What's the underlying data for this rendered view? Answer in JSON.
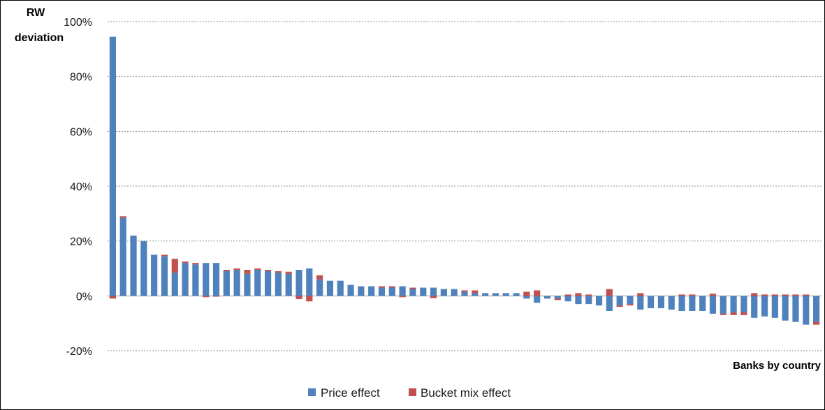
{
  "chart_data": {
    "type": "bar",
    "stacked": true,
    "ylabel_line1": "RW",
    "ylabel_line2": "deviation",
    "xlabel": "Banks by country",
    "ylim": [
      -20,
      100
    ],
    "yticks": [
      -20,
      0,
      20,
      40,
      60,
      80,
      100
    ],
    "ytick_labels": [
      "-20%",
      "0%",
      "20%",
      "40%",
      "60%",
      "80%",
      "100%"
    ],
    "grid": true,
    "legend_position": "bottom",
    "colors": {
      "price": "#4F81BD",
      "bucket": "#C0504D"
    },
    "series": [
      {
        "name": "Price effect",
        "values": [
          94.5,
          28.5,
          22,
          20,
          15,
          14.5,
          8.5,
          12,
          11.5,
          12,
          12,
          9,
          9.5,
          8,
          9.5,
          9,
          8.5,
          8,
          9.5,
          10,
          6,
          5.5,
          5.5,
          4,
          3.5,
          3.5,
          3,
          3,
          3.5,
          2.5,
          3,
          3,
          2.5,
          2.5,
          1.5,
          1,
          1,
          1,
          1,
          1,
          -1,
          -2.5,
          -1,
          -1,
          -2,
          -3,
          -3,
          -3.5,
          -5.5,
          -3.5,
          -3,
          -5,
          -4.5,
          -4.5,
          -5,
          -5.5,
          -5.5,
          -5.5,
          -6.5,
          -6.5,
          -6,
          -6,
          -8,
          -7.5,
          -8,
          -9,
          -9.5,
          -10.5,
          -9.5
        ]
      },
      {
        "name": "Bucket mix effect",
        "values": [
          -1,
          0.5,
          0,
          0,
          0,
          0.5,
          5,
          0.5,
          0.5,
          -0.5,
          -0.3,
          0.5,
          0.5,
          1.5,
          0.5,
          0.5,
          0.5,
          0.8,
          -1.2,
          -2,
          1.5,
          0,
          0,
          0,
          0,
          0,
          0.5,
          0.5,
          -0.5,
          0.5,
          0,
          -0.8,
          0,
          0,
          0.5,
          1,
          0,
          0,
          0,
          0,
          1.5,
          2,
          0,
          -0.5,
          0.5,
          1,
          0.5,
          0,
          2.5,
          -0.5,
          -0.5,
          1,
          0,
          0,
          0,
          0.5,
          0.5,
          0,
          0.8,
          -0.5,
          -1,
          -1,
          1,
          0.5,
          0.5,
          0.5,
          0.5,
          0.5,
          -1
        ]
      }
    ]
  }
}
